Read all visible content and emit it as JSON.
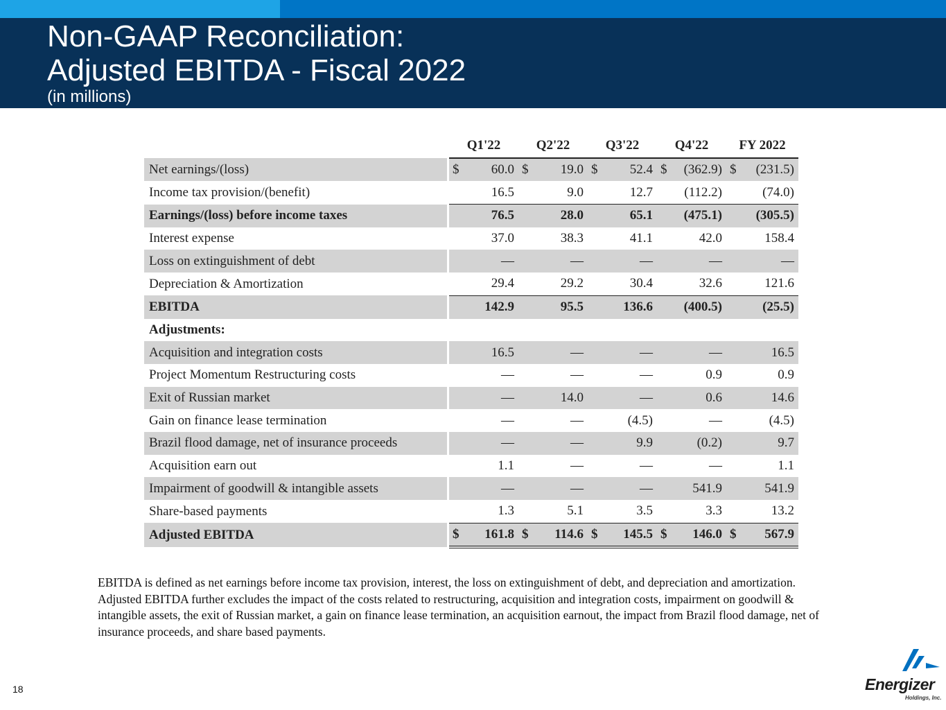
{
  "header": {
    "title_line1": "Non-GAAP Reconciliation:",
    "title_line2": "Adjusted EBITDA - Fiscal 2022",
    "subtitle": "(in millions)"
  },
  "table": {
    "columns": [
      "Q1'22",
      "Q2'22",
      "Q3'22",
      "Q4'22",
      "FY 2022"
    ],
    "rows": [
      {
        "label": "Net earnings/(loss)",
        "values": [
          "60.0",
          "19.0",
          "52.4",
          "(362.9)",
          "(231.5)"
        ],
        "dollar": "$"
      },
      {
        "label": "Income tax provision/(benefit)",
        "values": [
          "16.5",
          "9.0",
          "12.7",
          "(112.2)",
          "(74.0)"
        ]
      },
      {
        "label": "Earnings/(loss) before income taxes",
        "values": [
          "76.5",
          "28.0",
          "65.1",
          "(475.1)",
          "(305.5)"
        ]
      },
      {
        "label": "Interest expense",
        "values": [
          "37.0",
          "38.3",
          "41.1",
          "42.0",
          "158.4"
        ]
      },
      {
        "label": "Loss on extinguishment of debt",
        "values": [
          "—",
          "—",
          "—",
          "—",
          "—"
        ]
      },
      {
        "label": "Depreciation & Amortization",
        "values": [
          "29.4",
          "29.2",
          "30.4",
          "32.6",
          "121.6"
        ]
      },
      {
        "label": "EBITDA",
        "values": [
          "142.9",
          "95.5",
          "136.6",
          "(400.5)",
          "(25.5)"
        ]
      },
      {
        "label": "Adjustments:",
        "values": [
          "",
          "",
          "",
          "",
          ""
        ]
      },
      {
        "label": "Acquisition and integration costs",
        "values": [
          "16.5",
          "—",
          "—",
          "—",
          "16.5"
        ]
      },
      {
        "label": "Project Momentum Restructuring costs",
        "values": [
          "—",
          "—",
          "—",
          "0.9",
          "0.9"
        ]
      },
      {
        "label": "Exit of Russian market",
        "values": [
          "—",
          "14.0",
          "—",
          "0.6",
          "14.6"
        ]
      },
      {
        "label": "Gain on finance lease termination",
        "values": [
          "—",
          "—",
          "(4.5)",
          "—",
          "(4.5)"
        ]
      },
      {
        "label": "Brazil flood damage, net of insurance proceeds",
        "values": [
          "—",
          "—",
          "9.9",
          "(0.2)",
          "9.7"
        ]
      },
      {
        "label": "Acquisition earn out",
        "values": [
          "1.1",
          "—",
          "—",
          "—",
          "1.1"
        ]
      },
      {
        "label": "Impairment of goodwill & intangible assets",
        "values": [
          "—",
          "—",
          "—",
          "541.9",
          "541.9"
        ]
      },
      {
        "label": "Share-based payments",
        "values": [
          "1.3",
          "5.1",
          "3.5",
          "3.3",
          "13.2"
        ]
      },
      {
        "label": "Adjusted EBITDA",
        "values": [
          "161.8",
          "114.6",
          "145.5",
          "146.0",
          "567.9"
        ],
        "dollar": "$"
      }
    ]
  },
  "footnote": "EBITDA is defined as net earnings before income tax provision, interest, the loss on extinguishment of debt, and depreciation and amortization. Adjusted EBITDA further excludes the impact of the costs related to restructuring, acquisition and integration costs, impairment on goodwill & intangible assets, the exit of Russian market, a gain on finance lease termination, an acquisition earnout, the impact from Brazil flood damage, net of insurance proceeds, and share based payments.",
  "page_number": "18",
  "logo": {
    "wordmark": "Energizer",
    "tagline": "Holdings, Inc.",
    "colors": {
      "primary": "#0070c0",
      "dark": "#1d1d1d"
    }
  },
  "colors": {
    "header_bg": "#083158",
    "accent_light": "#1ea4e6",
    "accent_mid": "#0075c6",
    "row_shade": "#d3d3d3"
  }
}
